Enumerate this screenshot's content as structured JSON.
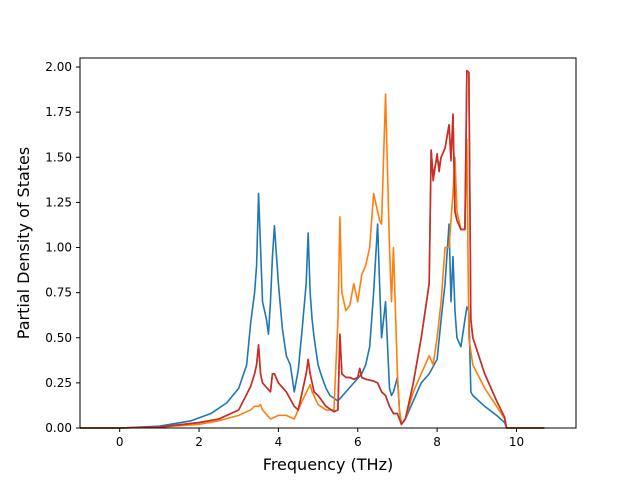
{
  "chart_data": {
    "type": "line",
    "title": "",
    "xlabel": "Frequency (THz)",
    "ylabel": "Partial Density of States",
    "xlim": [
      -1.0,
      11.5
    ],
    "ylim": [
      0.0,
      2.05
    ],
    "xticks": [
      0,
      2,
      4,
      6,
      8,
      10
    ],
    "xtick_labels": [
      "0",
      "2",
      "4",
      "6",
      "8",
      "10"
    ],
    "yticks": [
      0.0,
      0.25,
      0.5,
      0.75,
      1.0,
      1.25,
      1.5,
      1.75,
      2.0
    ],
    "ytick_labels": [
      "0.00",
      "0.25",
      "0.50",
      "0.75",
      "1.00",
      "1.25",
      "1.50",
      "1.75",
      "2.00"
    ],
    "grid": false,
    "series": [
      {
        "color": "#1f77b4",
        "x": [
          -1.0,
          0.0,
          1.0,
          1.8,
          2.3,
          2.7,
          3.0,
          3.2,
          3.3,
          3.4,
          3.45,
          3.5,
          3.55,
          3.6,
          3.7,
          3.75,
          3.8,
          3.85,
          3.9,
          4.0,
          4.1,
          4.2,
          4.3,
          4.4,
          4.5,
          4.6,
          4.7,
          4.75,
          4.8,
          4.85,
          4.9,
          5.0,
          5.1,
          5.2,
          5.3,
          5.5,
          5.7,
          5.9,
          6.1,
          6.2,
          6.3,
          6.4,
          6.5,
          6.55,
          6.6,
          6.7,
          6.8,
          6.85,
          6.9,
          7.0,
          7.05,
          7.1,
          7.2,
          7.4,
          7.6,
          7.8,
          8.0,
          8.1,
          8.2,
          8.3,
          8.35,
          8.4,
          8.45,
          8.5,
          8.6,
          8.7,
          8.75,
          8.8,
          8.85,
          8.9,
          9.2,
          9.5,
          9.7,
          9.75,
          10.7
        ],
        "y": [
          0.0,
          0.0,
          0.01,
          0.04,
          0.08,
          0.14,
          0.22,
          0.35,
          0.58,
          0.75,
          0.9,
          1.3,
          1.0,
          0.7,
          0.6,
          0.52,
          0.7,
          0.95,
          1.12,
          0.8,
          0.55,
          0.4,
          0.35,
          0.2,
          0.32,
          0.55,
          0.8,
          1.08,
          0.75,
          0.6,
          0.5,
          0.35,
          0.28,
          0.22,
          0.18,
          0.15,
          0.2,
          0.25,
          0.3,
          0.35,
          0.45,
          0.75,
          1.13,
          0.8,
          0.5,
          0.7,
          0.22,
          0.18,
          0.2,
          0.28,
          0.1,
          0.02,
          0.05,
          0.15,
          0.25,
          0.3,
          0.38,
          0.6,
          0.8,
          1.13,
          0.7,
          0.95,
          0.65,
          0.5,
          0.45,
          0.6,
          0.67,
          0.65,
          0.2,
          0.18,
          0.12,
          0.07,
          0.03,
          0.0,
          0.0
        ]
      },
      {
        "color": "#ff7f0e",
        "x": [
          -1.0,
          0.0,
          1.0,
          2.0,
          2.5,
          3.0,
          3.3,
          3.4,
          3.5,
          3.55,
          3.6,
          3.8,
          4.0,
          4.2,
          4.4,
          4.6,
          4.8,
          4.85,
          5.0,
          5.2,
          5.4,
          5.5,
          5.55,
          5.6,
          5.65,
          5.7,
          5.8,
          5.9,
          6.0,
          6.1,
          6.2,
          6.3,
          6.4,
          6.5,
          6.55,
          6.6,
          6.7,
          6.8,
          6.85,
          6.9,
          7.0,
          7.05,
          7.1,
          7.2,
          7.4,
          7.6,
          7.8,
          7.9,
          8.0,
          8.1,
          8.2,
          8.3,
          8.4,
          8.45,
          8.5,
          8.6,
          8.7,
          8.75,
          8.8,
          8.9,
          9.2,
          9.5,
          9.7,
          9.75,
          10.7
        ],
        "y": [
          0.0,
          0.0,
          0.005,
          0.02,
          0.04,
          0.07,
          0.1,
          0.12,
          0.12,
          0.13,
          0.1,
          0.05,
          0.07,
          0.07,
          0.05,
          0.15,
          0.24,
          0.2,
          0.13,
          0.1,
          0.1,
          0.6,
          1.17,
          0.75,
          0.7,
          0.65,
          0.68,
          0.8,
          0.7,
          0.85,
          0.9,
          1.0,
          1.3,
          1.2,
          1.15,
          1.13,
          1.85,
          1.0,
          0.7,
          1.0,
          0.3,
          0.1,
          0.02,
          0.05,
          0.2,
          0.3,
          0.4,
          0.35,
          0.5,
          0.7,
          1.0,
          1.0,
          1.3,
          1.5,
          1.2,
          1.1,
          1.1,
          1.6,
          0.5,
          0.35,
          0.22,
          0.12,
          0.05,
          0.0,
          0.0
        ]
      },
      {
        "color": "#2ca02c",
        "x": [
          -1.0,
          0.0,
          1.0,
          2.0,
          2.5,
          3.0,
          3.3,
          3.4,
          3.45,
          3.5,
          3.55,
          3.6,
          3.8,
          3.85,
          3.9,
          4.0,
          4.2,
          4.4,
          4.5,
          4.6,
          4.7,
          4.75,
          4.8,
          4.85,
          4.9,
          5.0,
          5.2,
          5.4,
          5.5,
          5.55,
          5.6,
          5.7,
          5.8,
          5.9,
          6.0,
          6.05,
          6.1,
          6.2,
          6.4,
          6.5,
          6.6,
          6.7,
          6.8,
          6.9,
          7.0,
          7.1,
          7.2,
          7.4,
          7.6,
          7.8,
          7.85,
          7.9,
          8.0,
          8.05,
          8.1,
          8.2,
          8.3,
          8.35,
          8.4,
          8.45,
          8.5,
          8.6,
          8.7,
          8.75,
          8.8,
          8.85,
          8.9,
          9.2,
          9.5,
          9.7,
          9.75,
          10.7
        ],
        "y": [
          0.0,
          0.0,
          0.005,
          0.03,
          0.05,
          0.1,
          0.23,
          0.3,
          0.35,
          0.46,
          0.3,
          0.25,
          0.2,
          0.3,
          0.3,
          0.25,
          0.2,
          0.12,
          0.1,
          0.2,
          0.3,
          0.38,
          0.3,
          0.25,
          0.2,
          0.18,
          0.12,
          0.09,
          0.1,
          0.52,
          0.3,
          0.28,
          0.28,
          0.27,
          0.28,
          0.33,
          0.28,
          0.27,
          0.26,
          0.25,
          0.2,
          0.18,
          0.12,
          0.08,
          0.08,
          0.02,
          0.05,
          0.25,
          0.5,
          0.8,
          1.54,
          1.4,
          1.5,
          1.45,
          1.5,
          1.55,
          1.68,
          1.5,
          1.73,
          1.2,
          1.15,
          1.1,
          1.1,
          1.98,
          1.97,
          0.6,
          0.5,
          0.3,
          0.15,
          0.06,
          0.0,
          0.0
        ]
      },
      {
        "color": "#d62728",
        "x": [
          -1.0,
          0.0,
          1.0,
          2.0,
          2.5,
          3.0,
          3.3,
          3.4,
          3.45,
          3.5,
          3.55,
          3.6,
          3.8,
          3.85,
          3.9,
          4.0,
          4.2,
          4.4,
          4.5,
          4.6,
          4.7,
          4.75,
          4.8,
          4.85,
          4.9,
          5.0,
          5.2,
          5.4,
          5.5,
          5.55,
          5.6,
          5.7,
          5.8,
          5.9,
          6.0,
          6.05,
          6.1,
          6.2,
          6.4,
          6.5,
          6.6,
          6.7,
          6.8,
          6.9,
          7.0,
          7.1,
          7.2,
          7.4,
          7.6,
          7.8,
          7.85,
          7.9,
          8.0,
          8.05,
          8.1,
          8.2,
          8.3,
          8.35,
          8.4,
          8.45,
          8.5,
          8.6,
          8.7,
          8.75,
          8.8,
          8.85,
          8.9,
          9.2,
          9.5,
          9.7,
          9.75,
          10.7
        ],
        "y": [
          0.0,
          0.0,
          0.005,
          0.03,
          0.05,
          0.1,
          0.23,
          0.3,
          0.35,
          0.46,
          0.3,
          0.25,
          0.2,
          0.3,
          0.3,
          0.25,
          0.2,
          0.12,
          0.1,
          0.2,
          0.3,
          0.38,
          0.3,
          0.25,
          0.2,
          0.18,
          0.12,
          0.09,
          0.1,
          0.52,
          0.3,
          0.28,
          0.28,
          0.27,
          0.28,
          0.33,
          0.28,
          0.27,
          0.26,
          0.25,
          0.2,
          0.18,
          0.12,
          0.08,
          0.08,
          0.02,
          0.05,
          0.25,
          0.5,
          0.8,
          1.54,
          1.37,
          1.52,
          1.42,
          1.5,
          1.55,
          1.68,
          1.48,
          1.74,
          1.2,
          1.15,
          1.1,
          1.1,
          1.98,
          1.97,
          0.6,
          0.5,
          0.3,
          0.15,
          0.06,
          0.0,
          0.0
        ]
      }
    ]
  }
}
